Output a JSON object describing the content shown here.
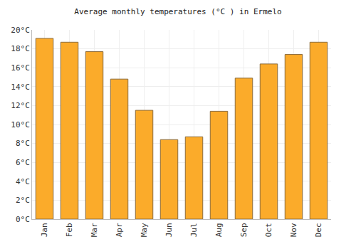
{
  "chart_data": {
    "type": "bar",
    "title": "Average monthly temperatures (°C ) in Ermelo",
    "categories": [
      "Jan",
      "Feb",
      "Mar",
      "Apr",
      "May",
      "Jun",
      "Jul",
      "Aug",
      "Sep",
      "Oct",
      "Nov",
      "Dec"
    ],
    "values": [
      19.1,
      18.7,
      17.7,
      14.8,
      11.5,
      8.4,
      8.7,
      11.4,
      14.9,
      16.4,
      17.4,
      18.7
    ],
    "color": "#fbab2a",
    "ylim": [
      0,
      20
    ],
    "yticks": [
      {
        "value": 0,
        "label": "0°C"
      },
      {
        "value": 2,
        "label": "2°C"
      },
      {
        "value": 4,
        "label": "4°C"
      },
      {
        "value": 6,
        "label": "6°C"
      },
      {
        "value": 8,
        "label": "8°C"
      },
      {
        "value": 10,
        "label": "10°C"
      },
      {
        "value": 12,
        "label": "12°C"
      },
      {
        "value": 14,
        "label": "14°C"
      },
      {
        "value": 16,
        "label": "16°C"
      },
      {
        "value": 18,
        "label": "18°C"
      },
      {
        "value": 20,
        "label": "20°C"
      }
    ],
    "grid": true
  }
}
